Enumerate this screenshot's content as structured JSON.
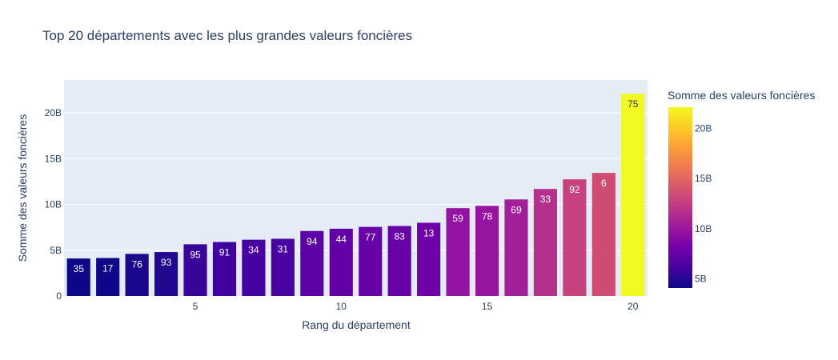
{
  "chart_data": {
    "type": "bar",
    "title": "Top 20 départements avec les plus grandes valeurs foncières",
    "xlabel": "Rang du département",
    "ylabel": "Somme des valeurs foncières",
    "x": [
      1,
      2,
      3,
      4,
      5,
      6,
      7,
      8,
      9,
      10,
      11,
      12,
      13,
      14,
      15,
      16,
      17,
      18,
      19,
      20
    ],
    "values": [
      4.1,
      4.15,
      4.6,
      4.8,
      5.65,
      5.9,
      6.15,
      6.25,
      7.1,
      7.35,
      7.55,
      7.65,
      8.0,
      9.6,
      9.85,
      10.55,
      11.7,
      12.75,
      13.45,
      22.1
    ],
    "bar_labels": [
      "35",
      "17",
      "76",
      "93",
      "95",
      "91",
      "34",
      "31",
      "94",
      "44",
      "77",
      "83",
      "13",
      "59",
      "78",
      "69",
      "33",
      "92",
      "6",
      "75"
    ],
    "value_unit": "B",
    "ylim": [
      0,
      23.6
    ],
    "xlim": [
      0.5,
      20.5
    ],
    "yticks": [
      0,
      5,
      10,
      15,
      20
    ],
    "ytick_labels": [
      "0",
      "5B",
      "10B",
      "15B",
      "20B"
    ],
    "xticks": [
      5,
      10,
      15,
      20
    ],
    "xtick_labels": [
      "5",
      "10",
      "15",
      "20"
    ],
    "grid": true,
    "colorbar": {
      "title": "Somme des valeurs foncières",
      "range": [
        4.1,
        22.1
      ],
      "ticks": [
        5,
        10,
        15,
        20
      ],
      "tick_labels": [
        "5B",
        "10B",
        "15B",
        "20B"
      ],
      "colorscale": [
        "#0d0887",
        "#46039f",
        "#7201a8",
        "#9c179e",
        "#bd3786",
        "#d8576b",
        "#ed7953",
        "#fb9f3a",
        "#fdca26",
        "#f0f921"
      ]
    },
    "plot_background": "#e5ecf6"
  }
}
